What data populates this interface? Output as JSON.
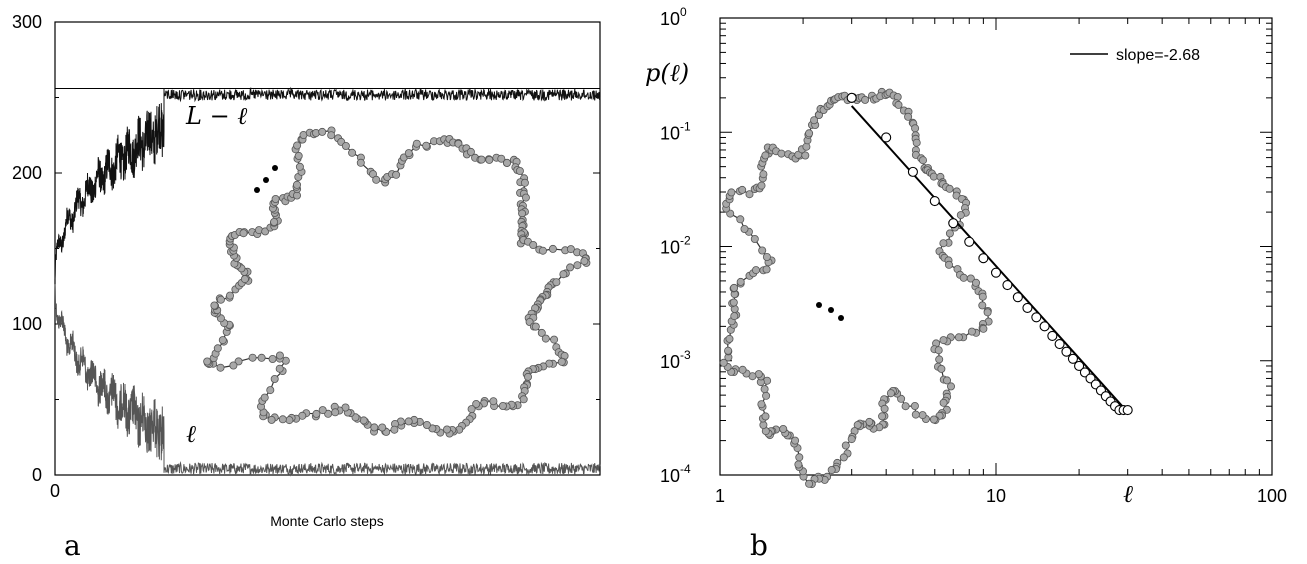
{
  "chart_data": [
    {
      "type": "line",
      "panel": "a",
      "xlabel": "Monte Carlo steps",
      "ylabel": "",
      "ylim": [
        0,
        300
      ],
      "yticks": [
        0,
        100,
        200,
        300
      ],
      "xticks": [
        "0"
      ],
      "reference_line": 256,
      "series": [
        {
          "name": "L − ℓ",
          "x_phase_end": 0.2,
          "start_value": 128,
          "end_value": 256,
          "noise_plateau": [
            250,
            256
          ],
          "description": "grows from 128 to 256 then stays near 256"
        },
        {
          "name": "ℓ",
          "start_value": 128,
          "end_value": 4,
          "noise_plateau": [
            0,
            12
          ]
        }
      ],
      "inset": "polymer loop configuration"
    },
    {
      "type": "scatter",
      "panel": "b",
      "log_x": true,
      "log_y": true,
      "xlim": [
        1,
        100
      ],
      "ylim": [
        0.0001,
        1
      ],
      "xticks": [
        "1",
        "10",
        "100"
      ],
      "yticks": [
        {
          "base": "10",
          "exp": "0"
        },
        {
          "base": "10",
          "exp": "-1"
        },
        {
          "base": "10",
          "exp": "-2"
        },
        {
          "base": "10",
          "exp": "-3"
        },
        {
          "base": "10",
          "exp": "-4"
        }
      ],
      "xlabel": "ℓ",
      "ylabel": "p(ℓ)",
      "legend": "slope=-2.68",
      "legend_position": "top-right",
      "fit": {
        "slope": -2.68,
        "x_range": [
          3,
          30
        ],
        "y_at_3": 0.17
      },
      "points": {
        "x": [
          3,
          4,
          5,
          6,
          7,
          8,
          9,
          10,
          11,
          12,
          13,
          14,
          15,
          16,
          17,
          18,
          19,
          20,
          21,
          22,
          23,
          24,
          25,
          26,
          27,
          28,
          29,
          30
        ],
        "y": [
          0.2,
          0.09,
          0.045,
          0.025,
          0.016,
          0.011,
          0.0079,
          0.0059,
          0.0046,
          0.0036,
          0.0029,
          0.0024,
          0.002,
          0.00165,
          0.0014,
          0.0012,
          0.00104,
          0.0009,
          0.00079,
          0.0007,
          0.00062,
          0.00055,
          0.00049,
          0.00044,
          0.0004,
          0.00037,
          0.00037,
          0.00037
        ]
      },
      "inset": "polymer loop configuration"
    }
  ]
}
